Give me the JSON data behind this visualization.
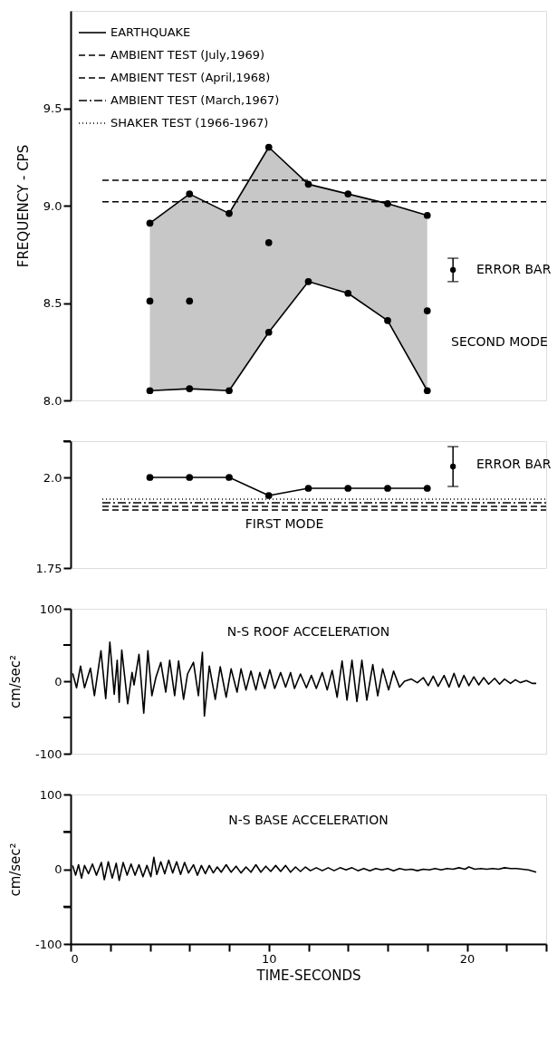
{
  "chart_data": [
    {
      "type": "line",
      "ylabel": "FREQUENCY - CPS",
      "xlim": [
        0,
        24
      ],
      "ylim": [
        8.0,
        10.0
      ],
      "yticks": [
        {
          "value": 8,
          "label": "8.0"
        },
        8.5,
        {
          "value": 9,
          "label": "9.0"
        },
        9.5
      ],
      "tick_labels": "y",
      "legend": "top left",
      "series": [
        {
          "name": "EARTHQUAKE",
          "color": "#000000",
          "marker": "circle",
          "line_style": "solid",
          "x": [
            4,
            6,
            8,
            10,
            12,
            14,
            16,
            18
          ],
          "values": [
            8.91,
            9.06,
            8.96,
            9.3,
            9.11,
            9.06,
            9.01,
            8.95
          ],
          "lower": [
            8.05,
            8.06,
            8.05,
            8.35,
            8.61,
            8.55,
            8.41,
            8.05
          ],
          "upper": [
            8.91,
            9.06,
            8.96,
            9.3,
            9.11,
            9.06,
            9.01,
            8.95
          ]
        },
        {
          "color": "#000000",
          "marker": "circle",
          "line_style": "solid",
          "x": [
            4,
            6,
            8,
            10,
            12,
            14,
            16,
            18
          ],
          "values": [
            8.05,
            8.06,
            8.05,
            8.35,
            8.61,
            8.55,
            8.41,
            8.05
          ]
        },
        {
          "type": "scatter",
          "color": "#000000",
          "marker": "circle",
          "x": [
            4,
            6,
            10,
            18
          ],
          "values": [
            8.51,
            8.51,
            8.81,
            8.46
          ]
        },
        {
          "name": "AMBIENT TEST (July,1969)",
          "color": "#000000",
          "marker": "none",
          "line_style": "dashed",
          "x": [
            1.6,
            24
          ],
          "values": [
            9.13,
            9.13
          ]
        },
        {
          "name": "AMBIENT TEST (April,1968)",
          "color": "#000000",
          "marker": "none",
          "line_style": "dashed",
          "x": [
            1.6,
            24
          ],
          "values": [
            9.02,
            9.02
          ]
        },
        {
          "name": "AMBIENT TEST (March,1967)",
          "color": "#000000",
          "marker": "none",
          "line_style": "dashdot"
        },
        {
          "name": "SHAKER TEST (1966-1967)",
          "color": "#000000",
          "marker": "none",
          "line_style": "dotted"
        },
        {
          "type": "scatter",
          "color": "#000000",
          "marker": "circle",
          "x": [
            19.3
          ],
          "values": [
            8.67
          ],
          "errors": [
            0.06
          ]
        }
      ],
      "annotations": [
        "ERROR BAR",
        "SECOND MODE"
      ]
    },
    {
      "type": "line",
      "xlim": [
        0,
        24
      ],
      "ylim": [
        1.75,
        2.1
      ],
      "yticks": [
        1.75,
        {
          "value": 2,
          "label": "2.0"
        },
        {
          "value": 2.1,
          "label": null
        }
      ],
      "tick_labels": "y",
      "series": [
        {
          "color": "#000000",
          "marker": "circle",
          "line_style": "solid",
          "x": [
            4,
            6,
            8,
            10,
            12,
            14,
            16,
            18
          ],
          "values": [
            2.0,
            2.0,
            2.0,
            1.95,
            1.97,
            1.97,
            1.97,
            1.97
          ]
        },
        {
          "color": "#000000",
          "marker": "none",
          "line_style": "dashed",
          "x": [
            1.6,
            24
          ],
          "values": [
            1.91,
            1.91
          ]
        },
        {
          "color": "#000000",
          "marker": "none",
          "line_style": "dashed",
          "x": [
            1.6,
            24
          ],
          "values": [
            1.92,
            1.92
          ]
        },
        {
          "color": "#000000",
          "marker": "none",
          "line_style": "dashdot",
          "x": [
            1.6,
            24
          ],
          "values": [
            1.93,
            1.93
          ]
        },
        {
          "color": "#000000",
          "marker": "none",
          "line_style": "dotted",
          "x": [
            1.6,
            24
          ],
          "values": [
            1.94,
            1.94
          ]
        },
        {
          "type": "scatter",
          "color": "#000000",
          "marker": "circle",
          "x": [
            19.3
          ],
          "values": [
            2.03
          ],
          "errors": [
            0.055
          ]
        }
      ],
      "annotations": [
        "ERROR BAR",
        "FIRST MODE"
      ]
    },
    {
      "type": "line",
      "ylabel": "cm/sec²",
      "xlim": [
        0,
        24
      ],
      "ylim": [
        -100,
        100
      ],
      "yticks": [
        -100,
        {
          "value": -50,
          "label": null
        },
        0,
        {
          "value": 50,
          "label": null
        },
        100
      ],
      "tick_labels": "y",
      "series": [
        {
          "color": "#000000",
          "marker": "none",
          "line_style": "solid",
          "x": [
            0.1,
            0.3,
            0.5,
            0.7,
            1.0,
            1.2,
            1.53,
            1.77,
            1.98,
            2.2,
            2.35,
            2.45,
            2.58,
            2.88,
            3.1,
            3.2,
            3.45,
            3.69,
            3.9,
            4.1,
            4.3,
            4.55,
            4.8,
            5.0,
            5.25,
            5.45,
            5.7,
            5.9,
            6.2,
            6.45,
            6.65,
            6.75,
            7.0,
            7.3,
            7.55,
            7.85,
            8.1,
            8.4,
            8.6,
            8.85,
            9.1,
            9.35,
            9.55,
            9.8,
            10.05,
            10.3,
            10.6,
            10.85,
            11.1,
            11.3,
            11.6,
            11.9,
            12.15,
            12.4,
            12.7,
            12.95,
            13.2,
            13.45,
            13.7,
            13.95,
            14.2,
            14.45,
            14.7,
            14.95,
            15.25,
            15.5,
            15.75,
            16.05,
            16.3,
            16.6,
            16.85,
            17.2,
            17.5,
            17.8,
            18.05,
            18.3,
            18.55,
            18.85,
            19.1,
            19.35,
            19.6,
            19.85,
            20.1,
            20.35,
            20.6,
            20.85,
            21.1,
            21.4,
            21.65,
            21.9,
            22.2,
            22.45,
            22.7,
            23.0,
            23.3,
            23.5
          ],
          "values": [
            11,
            -9,
            21,
            -9,
            18,
            -20,
            42,
            -24,
            54,
            -18,
            29,
            -29,
            43,
            -31,
            12,
            -5,
            37,
            -44,
            42,
            -20,
            5,
            26,
            -15,
            29,
            -20,
            28,
            -25,
            10,
            26,
            -20,
            40,
            -48,
            21,
            -25,
            20,
            -22,
            17,
            -15,
            17,
            -12,
            14,
            -12,
            12,
            -10,
            16,
            -10,
            12,
            -8,
            12,
            -10,
            10,
            -9,
            8,
            -10,
            12,
            -12,
            15,
            -22,
            28,
            -26,
            29,
            -28,
            29,
            -26,
            23,
            -20,
            17,
            -12,
            14,
            -8,
            0,
            3,
            -2,
            5,
            -6,
            7,
            -7,
            8,
            -8,
            11,
            -8,
            8,
            -6,
            6,
            -5,
            5,
            -4,
            4,
            -4,
            3,
            -3,
            2,
            -2,
            1,
            -3,
            -3
          ]
        }
      ],
      "annotations": [
        "N-S ROOF ACCELERATION"
      ]
    },
    {
      "type": "line",
      "ylabel": "cm/sec²",
      "xlabel": "TIME-SECONDS",
      "xlim": [
        0,
        24
      ],
      "ylim": [
        -100,
        100
      ],
      "yticks": [
        -100,
        {
          "value": -50,
          "label": null
        },
        0,
        {
          "value": 50,
          "label": null
        },
        100
      ],
      "xticks": [
        0,
        {
          "value": 2,
          "label": null
        },
        {
          "value": 4,
          "label": null
        },
        {
          "value": 6,
          "label": null
        },
        {
          "value": 8,
          "label": null
        },
        10,
        {
          "value": 12,
          "label": null
        },
        {
          "value": 14,
          "label": null
        },
        {
          "value": 16,
          "label": null
        },
        {
          "value": 18,
          "label": null
        },
        20,
        {
          "value": 22,
          "label": null
        },
        {
          "value": 24,
          "label": null
        }
      ],
      "series": [
        {
          "color": "#000000",
          "marker": "none",
          "line_style": "solid",
          "x": [
            0.1,
            0.25,
            0.4,
            0.55,
            0.7,
            0.9,
            1.1,
            1.3,
            1.55,
            1.7,
            1.9,
            2.1,
            2.3,
            2.45,
            2.65,
            2.85,
            3.05,
            3.25,
            3.45,
            3.65,
            3.85,
            4.05,
            4.2,
            4.35,
            4.55,
            4.75,
            4.95,
            5.15,
            5.35,
            5.55,
            5.75,
            5.95,
            6.2,
            6.4,
            6.6,
            6.8,
            7.0,
            7.2,
            7.4,
            7.6,
            7.85,
            8.1,
            8.35,
            8.6,
            8.85,
            9.1,
            9.35,
            9.6,
            9.85,
            10.1,
            10.35,
            10.6,
            10.85,
            11.1,
            11.35,
            11.6,
            11.85,
            12.1,
            12.4,
            12.7,
            13.0,
            13.3,
            13.6,
            13.9,
            14.2,
            14.5,
            14.8,
            15.1,
            15.4,
            15.7,
            16.0,
            16.3,
            16.6,
            16.9,
            17.2,
            17.5,
            17.8,
            18.1,
            18.4,
            18.7,
            19.0,
            19.3,
            19.6,
            19.9,
            20.1,
            20.4,
            20.7,
            21.0,
            21.3,
            21.6,
            21.9,
            22.2,
            22.5,
            22.8,
            23.1,
            23.5
          ],
          "values": [
            5,
            -8,
            6,
            -12,
            5,
            -6,
            7,
            -8,
            9,
            -14,
            10,
            -12,
            8,
            -15,
            9,
            -8,
            7,
            -8,
            6,
            -10,
            5,
            -10,
            16,
            -7,
            10,
            -6,
            12,
            -5,
            10,
            -7,
            9,
            -5,
            6,
            -8,
            5,
            -6,
            5,
            -5,
            3,
            -4,
            6,
            -4,
            4,
            -5,
            3,
            -4,
            6,
            -4,
            4,
            -3,
            5,
            -3,
            5,
            -4,
            3,
            -3,
            3,
            -2,
            2,
            -2,
            2,
            -2,
            2,
            -1,
            2,
            -2,
            1,
            -2,
            1,
            -1,
            1,
            -2,
            1,
            -1,
            0,
            -2,
            0,
            -1,
            1,
            -1,
            1,
            0,
            2,
            0,
            3,
            0,
            1,
            0,
            1,
            0,
            2,
            1,
            1,
            0,
            -1,
            -4
          ]
        }
      ],
      "annotations": [
        "N-S BASE ACCELERATION"
      ]
    }
  ]
}
